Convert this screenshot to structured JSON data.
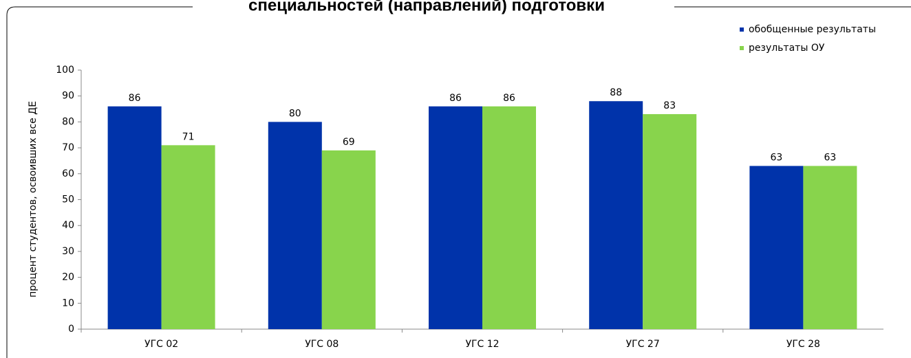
{
  "chart_data": {
    "type": "bar",
    "title": "специальностей (направлений) подготовки",
    "ylabel": "процент студентов, освоивших все ДЕ",
    "categories": [
      "УГС 02",
      "УГС 08",
      "УГС 12",
      "УГС 27",
      "УГС 28"
    ],
    "series": [
      {
        "name": "обобщенные результаты",
        "color": "#0033aa",
        "values": [
          86,
          80,
          86,
          88,
          63
        ]
      },
      {
        "name": "результаты ОУ",
        "color": "#88d44c",
        "values": [
          71,
          69,
          86,
          83,
          63
        ]
      }
    ],
    "ylim": [
      0,
      100
    ],
    "yticks": [
      0,
      10,
      20,
      30,
      40,
      50,
      60,
      70,
      80,
      90,
      100
    ],
    "legend": "top-right"
  }
}
